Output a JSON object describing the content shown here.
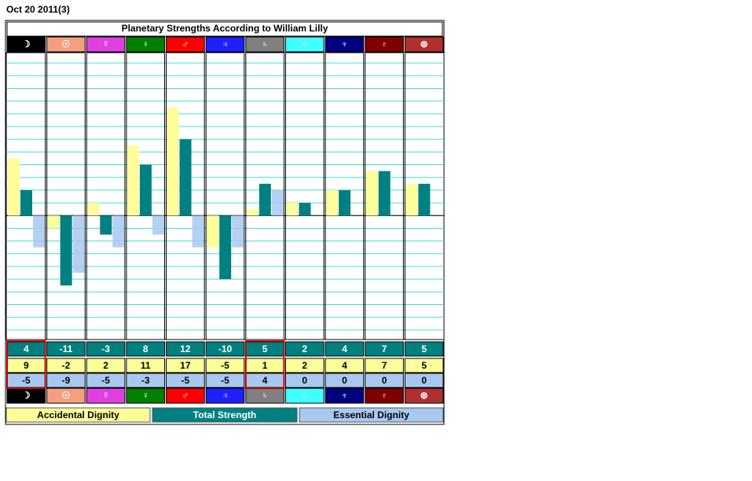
{
  "date": "Oct 20 2011(3)",
  "chart_data": {
    "type": "bar",
    "title": "Planetary Strengths According to William Lilly",
    "categories": [
      "☽",
      "☉",
      "☿",
      "♀",
      "♂",
      "♃",
      "♄",
      "♅",
      "♆",
      "♇",
      "⊗"
    ],
    "category_colors": [
      "#000000",
      "#f4a080",
      "#e040e0",
      "#008000",
      "#ff0000",
      "#2020ff",
      "#808080",
      "#40ffff",
      "#000080",
      "#800000",
      "#b03030"
    ],
    "series": [
      {
        "name": "Accidental Dignity",
        "color": "#ffff99",
        "values": [
          9,
          -2,
          2,
          11,
          17,
          -5,
          1,
          2,
          4,
          7,
          5
        ]
      },
      {
        "name": "Total Strength",
        "color": "#008080",
        "values": [
          4,
          -11,
          -3,
          8,
          12,
          -10,
          5,
          2,
          4,
          7,
          5
        ]
      },
      {
        "name": "Essential Dignity",
        "color": "#a8c8f0",
        "values": [
          -5,
          -9,
          -5,
          -3,
          -5,
          -5,
          4,
          0,
          0,
          0,
          0
        ]
      }
    ],
    "ylim": [
      -19.5,
      25.5
    ],
    "yticks": [
      -18,
      -16,
      -14,
      -12,
      -10,
      -8,
      -6,
      -4,
      -2,
      0,
      2,
      4,
      6,
      8,
      10,
      12,
      14,
      16,
      18,
      20,
      22,
      24
    ],
    "grid": true
  }
}
